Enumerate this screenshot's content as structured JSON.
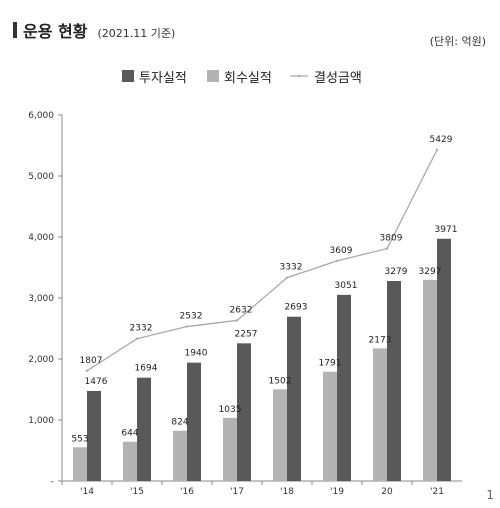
{
  "header": {
    "title": "운용 현황",
    "subtitle": "(2021.11 기준)",
    "unit": "(단위: 억원)",
    "page_number": "1"
  },
  "colors": {
    "invest": "#595959",
    "recovery": "#b3b3b3",
    "line": "#aaaaaa",
    "axis": "#888888"
  },
  "chart_data": {
    "type": "bar",
    "categories": [
      "'14",
      "'15",
      "'16",
      "'17",
      "'18",
      "'19",
      "20",
      "'21"
    ],
    "ylim": [
      0,
      6000
    ],
    "yticks": [
      0,
      1000,
      2000,
      3000,
      4000,
      5000,
      6000
    ],
    "ytick_labels": [
      "-",
      "1,000",
      "2,000",
      "3,000",
      "4,000",
      "5,000",
      "6,000"
    ],
    "legend_position": "top",
    "grid": false,
    "series": [
      {
        "name": "회수실적",
        "type": "bar",
        "values": [
          553,
          644,
          824,
          1035,
          1502,
          1791,
          2173,
          3297
        ]
      },
      {
        "name": "투자실적",
        "type": "bar",
        "values": [
          1476,
          1694,
          1940,
          2257,
          2693,
          3051,
          3279,
          3971
        ]
      },
      {
        "name": "결성금액",
        "type": "line",
        "values": [
          1807,
          2332,
          2532,
          2632,
          3332,
          3609,
          3809,
          5429
        ]
      }
    ]
  }
}
